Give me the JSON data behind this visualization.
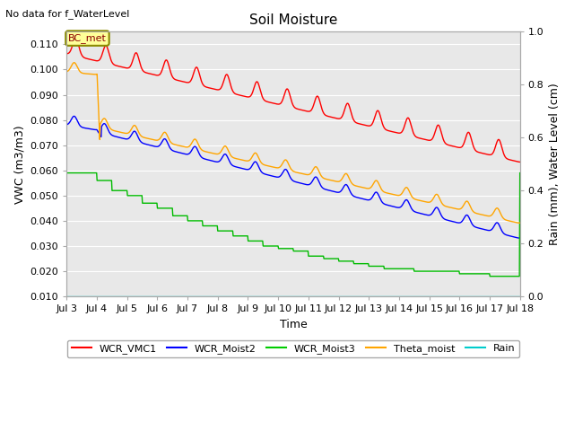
{
  "title": "Soil Moisture",
  "note": "No data for f_WaterLevel",
  "xlabel": "Time",
  "ylabel_left": "VWC (m3/m3)",
  "ylabel_right": "Rain (mm), Water Level (cm)",
  "xlim_days": [
    3,
    18
  ],
  "ylim_left": [
    0.01,
    0.115
  ],
  "ylim_right": [
    0.0,
    1.0
  ],
  "x_ticks": [
    3,
    4,
    5,
    6,
    7,
    8,
    9,
    10,
    11,
    12,
    13,
    14,
    15,
    16,
    17,
    18
  ],
  "x_tick_labels": [
    "Jul 3",
    "Jul 4",
    "Jul 5",
    "Jul 6",
    "Jul 7",
    "Jul 8",
    "Jul 9",
    "Jul 10",
    "Jul 11",
    "Jul 12",
    "Jul 13",
    "Jul 14",
    "Jul 15",
    "Jul 16",
    "Jul 17",
    "Jul 18"
  ],
  "y_ticks_left": [
    0.01,
    0.02,
    0.03,
    0.04,
    0.05,
    0.06,
    0.07,
    0.08,
    0.09,
    0.1,
    0.11
  ],
  "y_ticks_right": [
    0.0,
    0.2,
    0.4,
    0.6,
    0.8,
    1.0
  ],
  "plot_bg_color": "#e8e8e8",
  "grid_color": "#ffffff",
  "legend_colors": [
    "#ff0000",
    "#0000ff",
    "#00cc00",
    "#ffa500",
    "#00cccc"
  ],
  "legend_labels": [
    "WCR_VMC1",
    "WCR_Moist2",
    "WCR_Moist3",
    "Theta_moist",
    "Rain"
  ],
  "bc_met_box_color": "#ffff99",
  "bc_met_border_color": "#8b8b00",
  "bc_met_text_color": "#8b0000"
}
